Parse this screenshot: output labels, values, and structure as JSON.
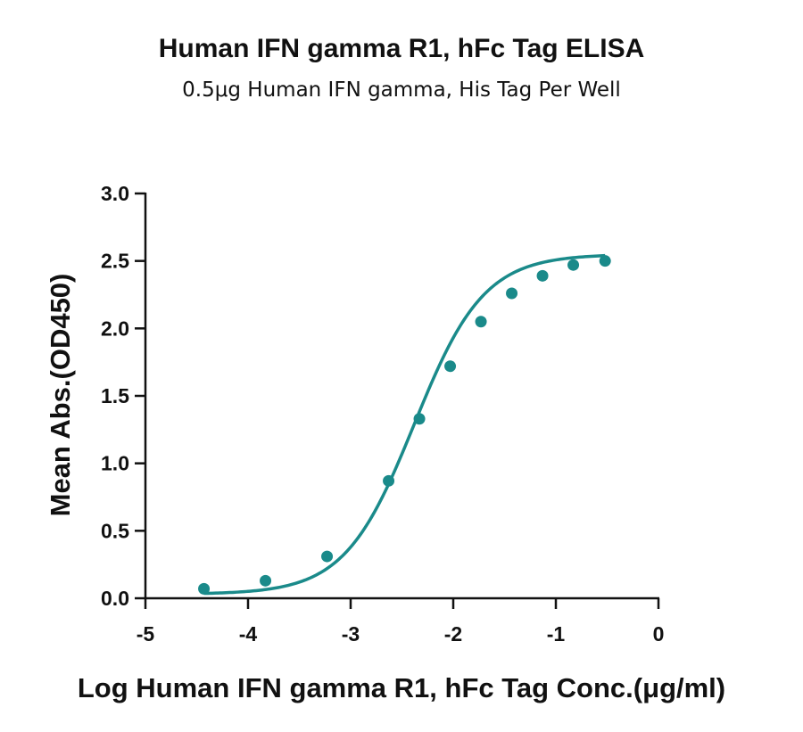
{
  "chart_data": {
    "type": "scatter",
    "title": "Human IFN gamma R1, hFc Tag ELISA",
    "subtitle": "0.5μg Human IFN gamma, His Tag Per Well",
    "xlabel": "Log Human IFN gamma R1, hFc Tag Conc.(μg/ml)",
    "ylabel": "Mean Abs.(OD450)",
    "xlim": [
      -5,
      0
    ],
    "ylim": [
      0,
      3
    ],
    "x_ticks": [
      "-5",
      "-4",
      "-3",
      "-2",
      "-1",
      "0"
    ],
    "y_ticks": [
      "0.0",
      "0.5",
      "1.0",
      "1.5",
      "2.0",
      "2.5",
      "3.0"
    ],
    "series": [
      {
        "x": [
          -4.43,
          -3.83,
          -3.23,
          -2.63,
          -2.33,
          -2.03,
          -1.73,
          -1.43,
          -1.13,
          -0.83,
          -0.52
        ],
        "y": [
          0.07,
          0.13,
          0.31,
          0.87,
          1.33,
          1.72,
          2.05,
          2.26,
          2.39,
          2.47,
          2.5
        ],
        "fit": "4PL sigmoidal curve"
      }
    ],
    "color": "#1a8a8a",
    "grid": false,
    "legend": "none"
  }
}
